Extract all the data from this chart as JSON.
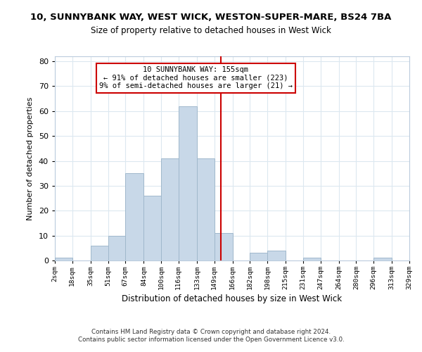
{
  "title": "10, SUNNYBANK WAY, WEST WICK, WESTON-SUPER-MARE, BS24 7BA",
  "subtitle": "Size of property relative to detached houses in West Wick",
  "xlabel": "Distribution of detached houses by size in West Wick",
  "ylabel": "Number of detached properties",
  "bar_color": "#c8d8e8",
  "bar_edge_color": "#a0b8cc",
  "bin_edges": [
    2,
    18,
    35,
    51,
    67,
    84,
    100,
    116,
    133,
    149,
    166,
    182,
    198,
    215,
    231,
    247,
    264,
    280,
    296,
    313,
    329
  ],
  "bar_heights": [
    1,
    0,
    6,
    10,
    35,
    26,
    41,
    62,
    41,
    11,
    0,
    3,
    4,
    0,
    1,
    0,
    0,
    0,
    1,
    0
  ],
  "vline_x": 155,
  "vline_color": "#cc0000",
  "annotation_title": "10 SUNNYBANK WAY: 155sqm",
  "annotation_line1": "← 91% of detached houses are smaller (223)",
  "annotation_line2": "9% of semi-detached houses are larger (21) →",
  "annotation_box_color": "#ffffff",
  "annotation_border_color": "#cc0000",
  "tick_labels": [
    "2sqm",
    "18sqm",
    "35sqm",
    "51sqm",
    "67sqm",
    "84sqm",
    "100sqm",
    "116sqm",
    "133sqm",
    "149sqm",
    "166sqm",
    "182sqm",
    "198sqm",
    "215sqm",
    "231sqm",
    "247sqm",
    "264sqm",
    "280sqm",
    "296sqm",
    "313sqm",
    "329sqm"
  ],
  "ylim": [
    0,
    82
  ],
  "yticks": [
    0,
    10,
    20,
    30,
    40,
    50,
    60,
    70,
    80
  ],
  "footer_line1": "Contains HM Land Registry data © Crown copyright and database right 2024.",
  "footer_line2": "Contains public sector information licensed under the Open Government Licence v3.0.",
  "bg_color": "#ffffff",
  "grid_color": "#dce8f0"
}
